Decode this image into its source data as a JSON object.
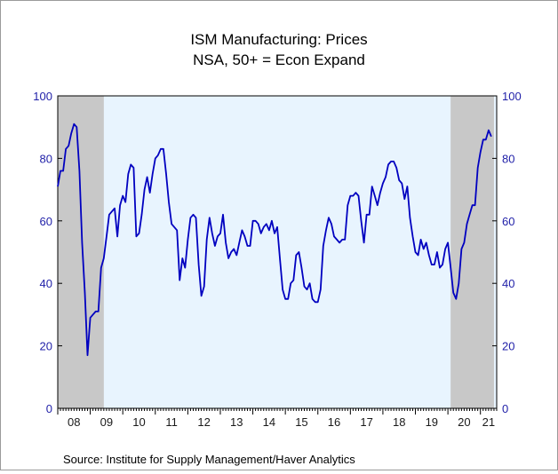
{
  "chart_data": {
    "type": "line",
    "title": "ISM Manufacturing: Prices",
    "subtitle": "NSA, 50+ = Econ Expand",
    "source": "Source:  Institute for Supply Management/Haver Analytics",
    "ylim": [
      0,
      100
    ],
    "yticks": [
      "0",
      "20",
      "40",
      "60",
      "80",
      "100"
    ],
    "xlim": [
      2008.0,
      2021.5
    ],
    "xticks": [
      {
        "label": "08",
        "year": 2008
      },
      {
        "label": "09",
        "year": 2009
      },
      {
        "label": "10",
        "year": 2010
      },
      {
        "label": "11",
        "year": 2011
      },
      {
        "label": "12",
        "year": 2012
      },
      {
        "label": "13",
        "year": 2013
      },
      {
        "label": "14",
        "year": 2014
      },
      {
        "label": "15",
        "year": 2015
      },
      {
        "label": "16",
        "year": 2016
      },
      {
        "label": "17",
        "year": 2017
      },
      {
        "label": "18",
        "year": 2018
      },
      {
        "label": "19",
        "year": 2019
      },
      {
        "label": "20",
        "year": 2020
      },
      {
        "label": "21",
        "year": 2021
      }
    ],
    "recessions": [
      {
        "start": "2008-01",
        "end": "2009-06"
      },
      {
        "start": "2020-02",
        "end": "2021-06"
      }
    ],
    "colors": {
      "line": "#0000c0",
      "plot_bg": "#e8f4fe",
      "recession": "#c8c8c8",
      "axis_text": "#1f1fa8"
    },
    "grid": false,
    "series": [
      {
        "start": "2008-01",
        "frequency": "monthly",
        "values": [
          71,
          76,
          76,
          83,
          84,
          88,
          91,
          90,
          76,
          53,
          37,
          17,
          29,
          30,
          31,
          31,
          45,
          48,
          55,
          62,
          63,
          64,
          55,
          65,
          68,
          66,
          75,
          78,
          77,
          55,
          56,
          62,
          70,
          74,
          69,
          75,
          80,
          81,
          83,
          83,
          75,
          66,
          59,
          58,
          57,
          41,
          48,
          45,
          54,
          61,
          62,
          61,
          46,
          36,
          39,
          54,
          61,
          56,
          52,
          55,
          56,
          62,
          53,
          48,
          50,
          51,
          49,
          53,
          57,
          55,
          52,
          52,
          60,
          60,
          59,
          56,
          58,
          59,
          57,
          60,
          56,
          58,
          48,
          38,
          35,
          35,
          40,
          41,
          49,
          50,
          45,
          39,
          38,
          40,
          35,
          34,
          34,
          38,
          52,
          57,
          61,
          59,
          55,
          54,
          53,
          54,
          54,
          65,
          68,
          68,
          69,
          68,
          60,
          53,
          62,
          62,
          71,
          68,
          65,
          69,
          72,
          74,
          78,
          79,
          79,
          77,
          73,
          72,
          67,
          71,
          61,
          55,
          50,
          49,
          54,
          51,
          53,
          49,
          46,
          46,
          50,
          45,
          46,
          51,
          53,
          45,
          37,
          35,
          40,
          51,
          53,
          59,
          62,
          65,
          65,
          77,
          82,
          86,
          86,
          89,
          87
        ]
      }
    ]
  }
}
